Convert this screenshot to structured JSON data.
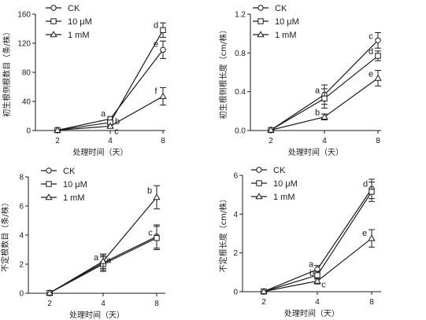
{
  "chart_data": [
    {
      "type": "line",
      "xlabel": "处理时间（天）",
      "ylabel": "初生根侧根数目（条/株）",
      "x": [
        2,
        4,
        8
      ],
      "ylim": [
        0,
        160
      ],
      "yticks": [
        "0",
        "40",
        "80",
        "120",
        "160"
      ],
      "xticks": [
        "2",
        "4",
        "8"
      ],
      "legend_position": "top-left",
      "series": [
        {
          "name": "CK",
          "marker": "circle",
          "values": [
            0.5,
            16,
            111
          ],
          "errors": [
            0,
            3,
            12
          ],
          "letters": [
            "",
            "a",
            "e"
          ]
        },
        {
          "name": "10 μM",
          "marker": "square",
          "values": [
            0.5,
            11,
            138
          ],
          "errors": [
            0,
            3,
            10
          ],
          "letters": [
            "",
            "b",
            "d"
          ]
        },
        {
          "name": "1 mM",
          "marker": "triangle",
          "values": [
            0.5,
            6,
            47
          ],
          "errors": [
            0,
            2,
            12
          ],
          "letters": [
            "",
            "c",
            "f"
          ]
        }
      ]
    },
    {
      "type": "line",
      "xlabel": "处理时间（天）",
      "ylabel": "初生根侧根长度（cm/株）",
      "x": [
        2,
        4,
        8
      ],
      "ylim": [
        0,
        1.2
      ],
      "yticks": [
        "0.0",
        "0.4",
        "0.8",
        "1.2"
      ],
      "xticks": [
        "2",
        "4",
        "8"
      ],
      "legend_position": "top-right",
      "series": [
        {
          "name": "CK",
          "marker": "circle",
          "values": [
            0.005,
            0.37,
            0.93
          ],
          "errors": [
            0,
            0.1,
            0.08
          ],
          "letters": [
            "",
            "a",
            "c"
          ]
        },
        {
          "name": "10 μM",
          "marker": "square",
          "values": [
            0.005,
            0.33,
            0.77
          ],
          "errors": [
            0,
            0.1,
            0.05
          ],
          "letters": [
            "",
            "",
            "d"
          ]
        },
        {
          "name": "1 mM",
          "marker": "triangle",
          "values": [
            0.005,
            0.14,
            0.54
          ],
          "errors": [
            0,
            0.03,
            0.08
          ],
          "letters": [
            "",
            "b",
            "e"
          ]
        }
      ]
    },
    {
      "type": "line",
      "xlabel": "处理时间（天）",
      "ylabel": "不定根数目（条/株）",
      "x": [
        2,
        4,
        8
      ],
      "ylim": [
        0,
        8
      ],
      "yticks": [
        "0",
        "2",
        "4",
        "6",
        "8"
      ],
      "xticks": [
        "2",
        "4",
        "8"
      ],
      "legend_position": "top-left",
      "series": [
        {
          "name": "CK",
          "marker": "circle",
          "values": [
            0.02,
            2.1,
            3.9
          ],
          "errors": [
            0,
            0.5,
            0.8
          ],
          "letters": [
            "",
            "a",
            ""
          ]
        },
        {
          "name": "10 μM",
          "marker": "square",
          "values": [
            0.02,
            2.0,
            3.8
          ],
          "errors": [
            0,
            0.5,
            0.8
          ],
          "letters": [
            "",
            "",
            "c"
          ]
        },
        {
          "name": "1 mM",
          "marker": "triangle",
          "values": [
            0.02,
            2.2,
            6.6
          ],
          "errors": [
            0,
            0.5,
            0.8
          ],
          "letters": [
            "",
            "a",
            "b"
          ]
        }
      ]
    },
    {
      "type": "line",
      "xlabel": "处理时间（天）",
      "ylabel": "不定根长度（cm/株）",
      "x": [
        2,
        4,
        8
      ],
      "ylim": [
        0,
        6
      ],
      "yticks": [
        "0",
        "2",
        "4",
        "6"
      ],
      "xticks": [
        "2",
        "4",
        "8"
      ],
      "legend_position": "top-left",
      "series": [
        {
          "name": "CK",
          "marker": "circle",
          "values": [
            0.01,
            1.15,
            5.3
          ],
          "errors": [
            0,
            0.2,
            0.5
          ],
          "letters": [
            "",
            "a",
            "d"
          ]
        },
        {
          "name": "10 μM",
          "marker": "square",
          "values": [
            0.01,
            0.85,
            5.15
          ],
          "errors": [
            0,
            0.2,
            0.5
          ],
          "letters": [
            "",
            "b",
            ""
          ]
        },
        {
          "name": "1 mM",
          "marker": "triangle",
          "values": [
            0.01,
            0.55,
            2.75
          ],
          "errors": [
            0,
            0.15,
            0.45
          ],
          "letters": [
            "",
            "c",
            "e"
          ]
        }
      ]
    }
  ]
}
